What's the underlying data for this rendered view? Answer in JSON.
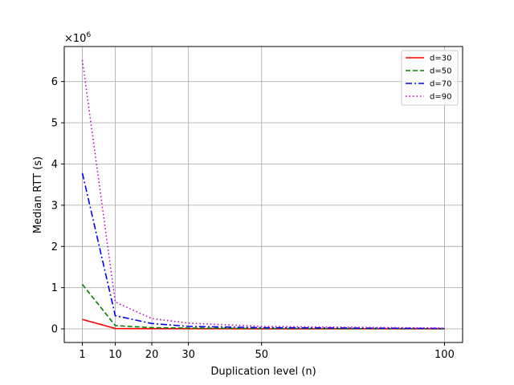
{
  "chart_data": {
    "type": "line",
    "title": "",
    "xlabel": "Duplication level (n)",
    "ylabel": "Median RTT (s)",
    "y_scale_label": "×10",
    "y_scale_exponent": "6",
    "x": [
      1,
      10,
      20,
      30,
      50,
      100
    ],
    "x_ticks": [
      "1",
      "10",
      "20",
      "30",
      "50",
      "100"
    ],
    "y_ticks": [
      0,
      1,
      2,
      3,
      4,
      5,
      6
    ],
    "xlim": [
      -3.95,
      104.95
    ],
    "ylim": [
      -0.33,
      6.85
    ],
    "grid": true,
    "legend_position": "top-right",
    "series": [
      {
        "name": "d=30",
        "color": "#ff0000",
        "dash": "solid",
        "values": [
          0.23,
          0.01,
          0.005,
          0.004,
          0.003,
          0.002
        ]
      },
      {
        "name": "d=50",
        "color": "#008000",
        "dash": "dashed",
        "values": [
          1.08,
          0.08,
          0.03,
          0.02,
          0.01,
          0.005
        ]
      },
      {
        "name": "d=70",
        "color": "#0000ff",
        "dash": "dashdot",
        "values": [
          3.78,
          0.32,
          0.13,
          0.06,
          0.03,
          0.01
        ]
      },
      {
        "name": "d=90",
        "color": "#bf00bf",
        "dash": "dotted",
        "values": [
          6.52,
          0.65,
          0.25,
          0.14,
          0.06,
          0.02
        ]
      }
    ]
  }
}
